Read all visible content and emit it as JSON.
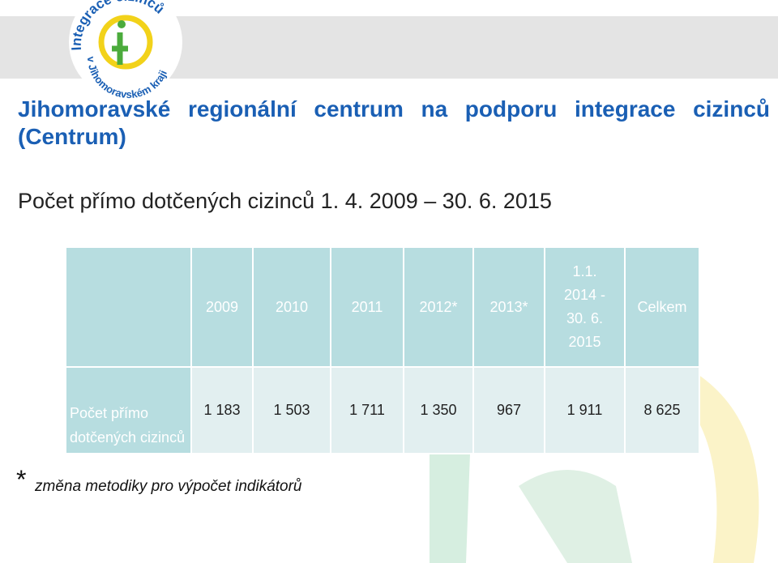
{
  "logo": {
    "top_text": "Integrace cizinců",
    "bottom_text": "v Jihomoravském kraji"
  },
  "header": {
    "title": "Jihomoravské regionální centrum na podporu integrace cizinců (Centrum)",
    "subtitle": "Počet přímo dotčených cizinců 1. 4. 2009 – 30. 6. 2015"
  },
  "table": {
    "columns": [
      "2009",
      "2010",
      "2011",
      "2012*",
      "2013*",
      "1.1. 2014 - 30. 6. 2015",
      "Celkem"
    ],
    "rows": [
      [
        "Počet přímo dotčených cizinců",
        "1 183",
        "1 503",
        "1 711",
        "1 350",
        "967",
        "1 911",
        "8 625"
      ]
    ]
  },
  "footnote": {
    "mark": "*",
    "text": "změna metodiky pro výpočet indikátorů"
  }
}
